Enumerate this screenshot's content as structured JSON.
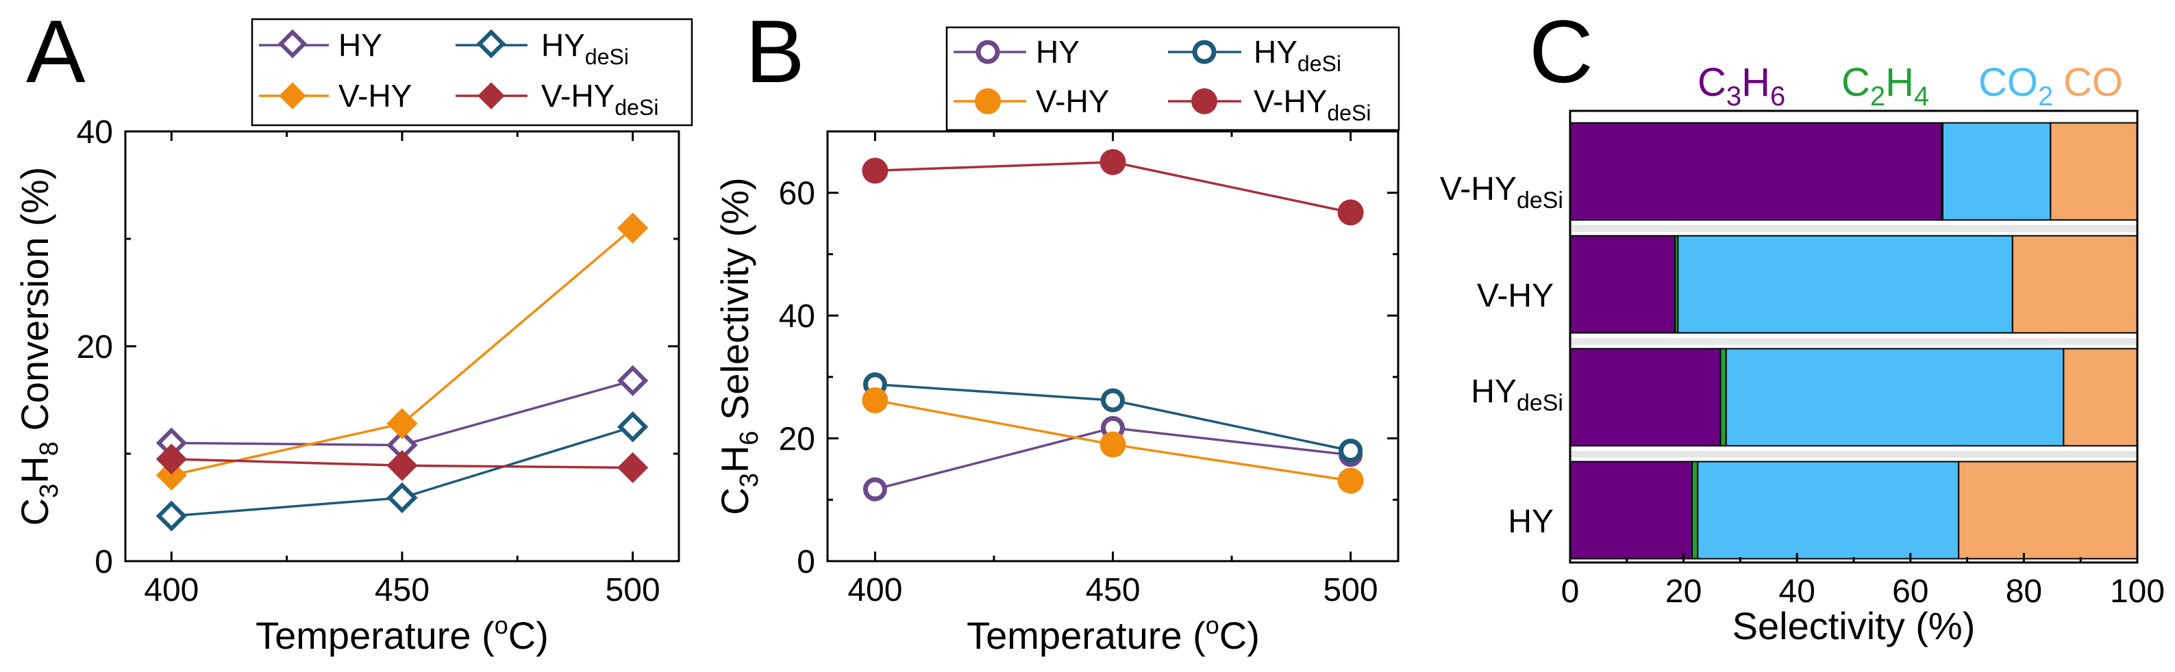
{
  "figure": {
    "panels": [
      "A",
      "B",
      "C"
    ]
  },
  "colors": {
    "HY": "#6b4a8a",
    "HY_deSi": "#1e5a7a",
    "V_HY": "#f28c0f",
    "V_HY_deSi": "#a82f3a",
    "C3H6": "#6a0080",
    "C2H4": "#22a038",
    "CO2": "#4dbef7",
    "CO": "#f4a86a"
  },
  "legend": {
    "HY": "HY",
    "HY_deSi_main": "HY",
    "HY_deSi_sub": "deSi",
    "V_HY": "V-HY",
    "V_HY_deSi_main": "V-HY",
    "V_HY_deSi_sub": "deSi"
  },
  "chart_data": [
    {
      "panel": "A",
      "type": "line",
      "xlabel": "Temperature (",
      "xlabel_sup": "o",
      "xlabel_tail": "C)",
      "ylabel_parts": [
        "C",
        "3",
        "H",
        "8",
        " Conversion (%)"
      ],
      "x": [
        400,
        450,
        500
      ],
      "xlim": [
        390,
        510
      ],
      "ylim": [
        0,
        40
      ],
      "xticks": [
        "400",
        "450",
        "500"
      ],
      "yticks": [
        "0",
        "20",
        "40"
      ],
      "series": [
        {
          "name": "HY",
          "marker": "open-diamond",
          "values": [
            11.0,
            10.8,
            16.8
          ]
        },
        {
          "name": "HY_deSi",
          "marker": "open-diamond",
          "values": [
            4.2,
            5.9,
            12.5
          ]
        },
        {
          "name": "V_HY",
          "marker": "filled-diamond",
          "values": [
            8.0,
            12.8,
            31.0
          ]
        },
        {
          "name": "V_HY_deSi",
          "marker": "filled-diamond",
          "values": [
            9.5,
            8.9,
            8.7
          ]
        }
      ]
    },
    {
      "panel": "B",
      "type": "line",
      "xlabel": "Temperature (",
      "xlabel_sup": "o",
      "xlabel_tail": "C)",
      "ylabel_parts": [
        "C",
        "3",
        "H",
        "6",
        " Selectivity (%)"
      ],
      "x": [
        400,
        450,
        500
      ],
      "xlim": [
        390,
        510
      ],
      "ylim": [
        0,
        70
      ],
      "xticks": [
        "400",
        "450",
        "500"
      ],
      "yticks": [
        "0",
        "20",
        "40",
        "60"
      ],
      "series": [
        {
          "name": "HY",
          "marker": "open-circle",
          "values": [
            11.7,
            21.7,
            17.3
          ]
        },
        {
          "name": "HY_deSi",
          "marker": "open-circle",
          "values": [
            28.8,
            26.2,
            18.0
          ]
        },
        {
          "name": "V_HY",
          "marker": "filled-circle",
          "values": [
            26.2,
            19.0,
            13.1
          ]
        },
        {
          "name": "V_HY_deSi",
          "marker": "filled-circle",
          "values": [
            63.6,
            65.0,
            56.8
          ]
        }
      ]
    },
    {
      "panel": "C",
      "type": "bar",
      "orientation": "horizontal-stacked",
      "xlabel": "Selectivity (%)",
      "xlim": [
        0,
        100
      ],
      "xticks": [
        "0",
        "20",
        "40",
        "60",
        "80",
        "100"
      ],
      "categories": [
        "V-HY",
        "V-HY",
        "HY",
        "HY"
      ],
      "category_subs": [
        "deSi",
        "",
        "deSi",
        ""
      ],
      "components": [
        {
          "key": "C3H6",
          "main": [
            "C",
            "3",
            "H",
            "6"
          ]
        },
        {
          "key": "C2H4",
          "main": [
            "C",
            "2",
            "H",
            "4"
          ]
        },
        {
          "key": "CO2",
          "main": [
            "CO",
            "2"
          ]
        },
        {
          "key": "CO",
          "main": [
            "CO"
          ]
        }
      ],
      "series": [
        {
          "name": "C3H6",
          "values": [
            65.5,
            18.5,
            26.5,
            21.5
          ]
        },
        {
          "name": "C2H4",
          "values": [
            0.2,
            0.5,
            1.0,
            1.0
          ]
        },
        {
          "name": "CO2",
          "values": [
            19.0,
            59.0,
            59.5,
            46.0
          ]
        },
        {
          "name": "CO",
          "values": [
            15.3,
            22.0,
            13.0,
            31.5
          ]
        }
      ]
    }
  ]
}
